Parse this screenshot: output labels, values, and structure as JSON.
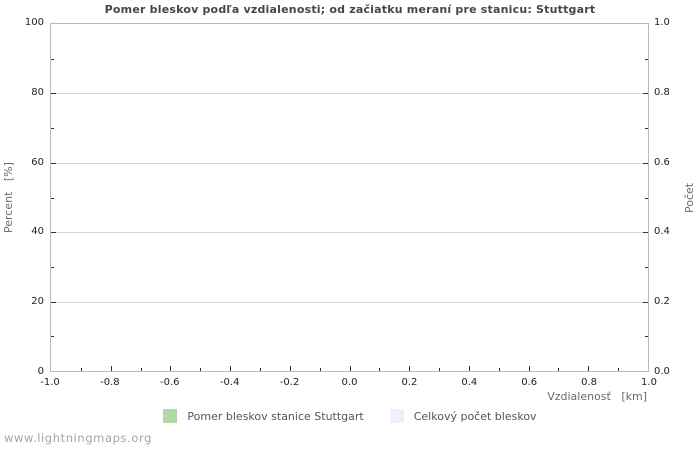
{
  "page": {
    "watermark": "www.lightningmaps.org"
  },
  "chart_data": {
    "type": "line",
    "title": "Pomer bleskov podľa vzdialenosti; od začiatku meraní pre stanicu: Stuttgart",
    "xlabel": "Vzdialenosť   [km]",
    "ylabel_left": "Percent   [%]",
    "ylabel_right": "Počet",
    "x": {
      "min": -1.0,
      "max": 1.0,
      "ticks": [
        "-1.0",
        "-0.8",
        "-0.6",
        "-0.4",
        "-0.2",
        "0.0",
        "0.2",
        "0.4",
        "0.6",
        "0.8",
        "1.0"
      ],
      "minor_step": 0.1
    },
    "y_left": {
      "min": 0,
      "max": 100,
      "ticks": [
        "0",
        "20",
        "40",
        "60",
        "80",
        "100"
      ],
      "minor_step": 10
    },
    "y_right": {
      "min": 0.0,
      "max": 1.0,
      "ticks": [
        "0.0",
        "0.2",
        "0.4",
        "0.6",
        "0.8",
        "1.0"
      ],
      "minor_step": 0.1
    },
    "grid": true,
    "legend_position": "bottom-center",
    "series": [
      {
        "name": "Pomer bleskov stanice Stuttgart",
        "color": "#b2d8a8",
        "points": []
      },
      {
        "name": "Celkový počet bleskov",
        "color": "#edeffa",
        "points": []
      }
    ],
    "colors": {
      "grid": "#d6d6d6",
      "frame": "#b9b9c3",
      "tick": "#333333",
      "title": "#45454d",
      "axis_label": "#6b6b6b",
      "tick_label": "#222222",
      "legend_text": "#555555",
      "watermark": "#a6a6a6"
    }
  }
}
